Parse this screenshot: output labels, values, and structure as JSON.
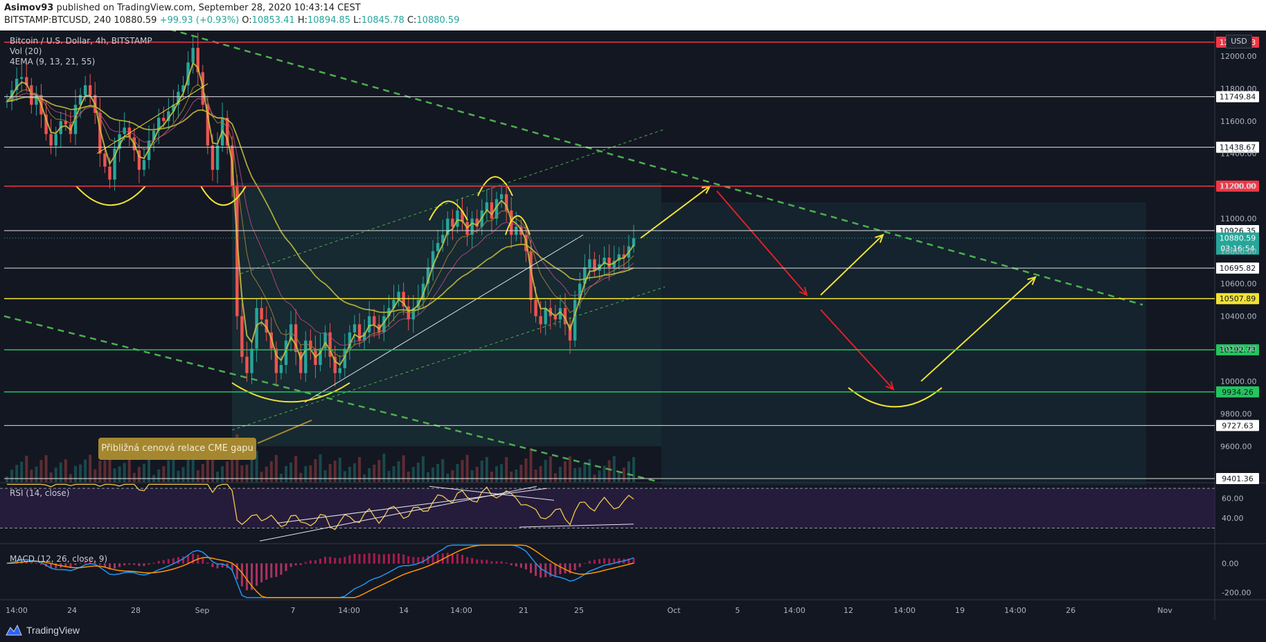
{
  "header": {
    "author": "Asimov93",
    "published_text": "published on TradingView.com, September 28, 2020 10:43:14 CEST",
    "symbol_line": "BITSTAMP:BTCUSD, 240",
    "last_price": "10880.59",
    "change": "+99.93 (+0.93%)",
    "o_label": "O:",
    "o_value": "10853.41",
    "h_label": "H:",
    "h_value": "10894.85",
    "l_label": "L:",
    "l_value": "10845.78",
    "c_label": "C:",
    "c_value": "10880.59"
  },
  "legend": {
    "title": "Bitcoin / U.S. Dollar, 4h, BITSTAMP",
    "vol": "Vol (20)",
    "ema": "4EMA (9, 13, 21, 55)",
    "rsi": "RSI (14, close)",
    "macd": "MACD (12, 26, close, 9)"
  },
  "currency": "USD",
  "annotation": "Přibližná cenová relace CME gapu",
  "footer": {
    "brand": "TradingView"
  },
  "colors": {
    "background": "#131722",
    "up": "#26a69a",
    "down": "#ef5350",
    "accent_yellow": "#f2e234",
    "trend_green": "#4caf50",
    "red_arrow": "#e0202a",
    "resistance_red": "#f23645"
  },
  "chart_data": {
    "type": "candlestick",
    "price_axis_ticks": [
      "12000.00",
      "11800.00",
      "11600.00",
      "11400.00",
      "11200.00",
      "11000.00",
      "10800.00",
      "10600.00",
      "10400.00",
      "10200.00",
      "10000.00",
      "9800.00",
      "9600.00"
    ],
    "price_ylim": [
      9380,
      12140
    ],
    "horizontal_levels": [
      {
        "label": "12085.03",
        "value": 12085,
        "color": "#f23645",
        "text_color": "#ffffff",
        "box": "#f23645"
      },
      {
        "label": "11749.84",
        "value": 11749.84,
        "color": "#e0e0e0",
        "text_color": "#131722",
        "box": "#ffffff"
      },
      {
        "label": "11438.67",
        "value": 11438.67,
        "color": "#e0e0e0",
        "text_color": "#131722",
        "box": "#ffffff"
      },
      {
        "label": "11200.00",
        "value": 11200,
        "color": "#f23645",
        "text_color": "#ffffff",
        "box": "#f23645"
      },
      {
        "label": "10926.35",
        "value": 10926.35,
        "color": "#e0e0e0",
        "text_color": "#131722",
        "box": "#ffffff"
      },
      {
        "label": "10695.82",
        "value": 10695.82,
        "color": "#e0e0e0",
        "text_color": "#131722",
        "box": "#ffffff"
      },
      {
        "label": "10507.89",
        "value": 10507.89,
        "color": "#f2e234",
        "text_color": "#131722",
        "box": "#f2e234"
      },
      {
        "label": "10192.73",
        "value": 10192.73,
        "color": "#22c55e",
        "text_color": "#131722",
        "box": "#22c55e"
      },
      {
        "label": "9934.26",
        "value": 9934.26,
        "color": "#22c55e",
        "text_color": "#131722",
        "box": "#22c55e"
      },
      {
        "label": "9727.63",
        "value": 9727.63,
        "color": "#e0e0e0",
        "text_color": "#131722",
        "box": "#ffffff"
      },
      {
        "label": "9401.36",
        "value": 9401.36,
        "color": "#e0e0e0",
        "text_color": "#131722",
        "box": "#ffffff"
      }
    ],
    "current_price": {
      "label": "10880.59",
      "value": 10880.59
    },
    "countdown": "03:16:54",
    "time_axis_labels": [
      "14:00",
      "24",
      "28",
      "Sep",
      "7",
      "14:00",
      "14",
      "14:00",
      "21",
      "25",
      "Oct",
      "5",
      "14:00",
      "12",
      "14:00",
      "19",
      "14:00",
      "26",
      "Nov"
    ],
    "close_series": [
      11720,
      11790,
      11860,
      11870,
      11820,
      11700,
      11760,
      11640,
      11520,
      11450,
      11520,
      11600,
      11580,
      11520,
      11700,
      11760,
      11820,
      11760,
      11650,
      11400,
      11320,
      11240,
      11430,
      11520,
      11560,
      11500,
      11420,
      11300,
      11360,
      11480,
      11540,
      11620,
      11600,
      11660,
      11700,
      11780,
      11820,
      11960,
      12050,
      11900,
      11700,
      11450,
      11300,
      11450,
      11620,
      11450,
      11200,
      10400,
      10150,
      10050,
      10200,
      10450,
      10380,
      10300,
      10200,
      10050,
      10100,
      10250,
      10350,
      10180,
      10050,
      10250,
      10200,
      10100,
      10200,
      10300,
      10150,
      10050,
      10080,
      10200,
      10300,
      10350,
      10250,
      10300,
      10400,
      10350,
      10300,
      10400,
      10450,
      10500,
      10550,
      10460,
      10380,
      10450,
      10500,
      10600,
      10700,
      10800,
      10850,
      10900,
      11000,
      10950,
      11050,
      10980,
      10900,
      11000,
      10950,
      11050,
      11100,
      11000,
      11120,
      11150,
      11050,
      10900,
      10950,
      10900,
      10800,
      10500,
      10400,
      10350,
      10450,
      10400,
      10380,
      10450,
      10350,
      10250,
      10500,
      10600,
      10700,
      10750,
      10680,
      10720,
      10760,
      10700,
      10740,
      10780,
      10760,
      10830,
      10880
    ],
    "rsi": {
      "levels": [
        70,
        30
      ],
      "ticks": [
        "60.00",
        "40.00"
      ],
      "ylim": [
        15,
        75
      ]
    },
    "macd": {
      "ticks": [
        "0.00",
        "-200.00"
      ],
      "ylim": [
        -240,
        130
      ]
    }
  }
}
